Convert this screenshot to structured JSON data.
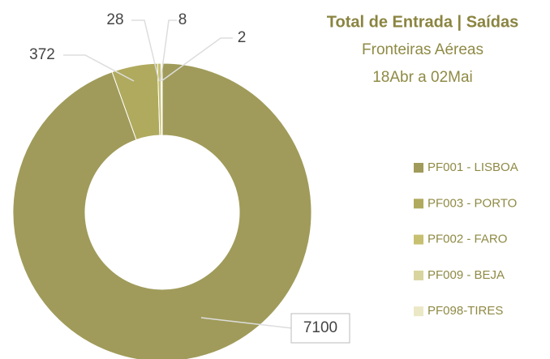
{
  "chart_data": {
    "type": "pie",
    "title": "Total de Entrada | Saídas",
    "subtitle": [
      "Fronteiras Aéreas",
      "18Abr a 02Mai"
    ],
    "categories": [
      "PF001 - LISBOA",
      "PF003 - PORTO",
      "PF002 - FARO",
      "PF009 - BEJA",
      "PF098-TIRES"
    ],
    "values": [
      7100,
      372,
      28,
      8,
      2
    ],
    "colors": [
      "#a09b5a",
      "#b0aa5e",
      "#c6c070",
      "#d8d49e",
      "#ebe8c6"
    ],
    "legend": "right"
  }
}
